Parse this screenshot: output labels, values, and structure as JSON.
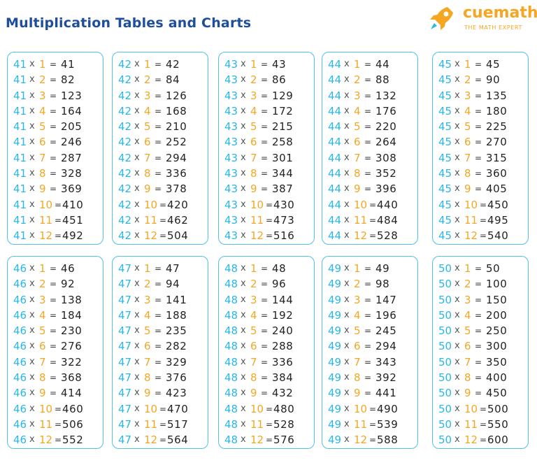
{
  "header": {
    "title": "Multiplication Tables and Charts",
    "logo_name": "cuemath",
    "logo_tagline": "THE MATH EXPERT"
  },
  "colors": {
    "title": "#1f4e9c",
    "base_number": "#29b6e8",
    "multiplier": "#f5a623",
    "border": "#4fc3e8",
    "logo": "#f5a623"
  },
  "symbols": {
    "times": "x",
    "equals": "="
  },
  "tables": [
    {
      "base": "41",
      "rows": [
        [
          "1",
          "41"
        ],
        [
          "2",
          "82"
        ],
        [
          "3",
          "123"
        ],
        [
          "4",
          "164"
        ],
        [
          "5",
          "205"
        ],
        [
          "6",
          "246"
        ],
        [
          "7",
          "287"
        ],
        [
          "8",
          "328"
        ],
        [
          "9",
          "369"
        ],
        [
          "10",
          "410"
        ],
        [
          "11",
          "451"
        ],
        [
          "12",
          "492"
        ]
      ]
    },
    {
      "base": "42",
      "rows": [
        [
          "1",
          "42"
        ],
        [
          "2",
          "84"
        ],
        [
          "3",
          "126"
        ],
        [
          "4",
          "168"
        ],
        [
          "5",
          "210"
        ],
        [
          "6",
          "252"
        ],
        [
          "7",
          "294"
        ],
        [
          "8",
          "336"
        ],
        [
          "9",
          "378"
        ],
        [
          "10",
          "420"
        ],
        [
          "11",
          "462"
        ],
        [
          "12",
          "504"
        ]
      ]
    },
    {
      "base": "43",
      "rows": [
        [
          "1",
          "43"
        ],
        [
          "2",
          "86"
        ],
        [
          "3",
          "129"
        ],
        [
          "4",
          "172"
        ],
        [
          "5",
          "215"
        ],
        [
          "6",
          "258"
        ],
        [
          "7",
          "301"
        ],
        [
          "8",
          "344"
        ],
        [
          "9",
          "387"
        ],
        [
          "10",
          "430"
        ],
        [
          "11",
          "473"
        ],
        [
          "12",
          "516"
        ]
      ]
    },
    {
      "base": "44",
      "rows": [
        [
          "1",
          "44"
        ],
        [
          "2",
          "88"
        ],
        [
          "3",
          "132"
        ],
        [
          "4",
          "176"
        ],
        [
          "5",
          "220"
        ],
        [
          "6",
          "264"
        ],
        [
          "7",
          "308"
        ],
        [
          "8",
          "352"
        ],
        [
          "9",
          "396"
        ],
        [
          "10",
          "440"
        ],
        [
          "11",
          "484"
        ],
        [
          "12",
          "528"
        ]
      ]
    },
    {
      "base": "45",
      "rows": [
        [
          "1",
          "45"
        ],
        [
          "2",
          "90"
        ],
        [
          "3",
          "135"
        ],
        [
          "4",
          "180"
        ],
        [
          "5",
          "225"
        ],
        [
          "6",
          "270"
        ],
        [
          "7",
          "315"
        ],
        [
          "8",
          "360"
        ],
        [
          "9",
          "405"
        ],
        [
          "10",
          "450"
        ],
        [
          "11",
          "495"
        ],
        [
          "12",
          "540"
        ]
      ]
    },
    {
      "base": "46",
      "rows": [
        [
          "1",
          "46"
        ],
        [
          "2",
          "92"
        ],
        [
          "3",
          "138"
        ],
        [
          "4",
          "184"
        ],
        [
          "5",
          "230"
        ],
        [
          "6",
          "276"
        ],
        [
          "7",
          "322"
        ],
        [
          "8",
          "368"
        ],
        [
          "9",
          "414"
        ],
        [
          "10",
          "460"
        ],
        [
          "11",
          "506"
        ],
        [
          "12",
          "552"
        ]
      ]
    },
    {
      "base": "47",
      "rows": [
        [
          "1",
          "47"
        ],
        [
          "2",
          "94"
        ],
        [
          "3",
          "141"
        ],
        [
          "4",
          "188"
        ],
        [
          "5",
          "235"
        ],
        [
          "6",
          "282"
        ],
        [
          "7",
          "329"
        ],
        [
          "8",
          "376"
        ],
        [
          "9",
          "423"
        ],
        [
          "10",
          "470"
        ],
        [
          "11",
          "517"
        ],
        [
          "12",
          "564"
        ]
      ]
    },
    {
      "base": "48",
      "rows": [
        [
          "1",
          "48"
        ],
        [
          "2",
          "96"
        ],
        [
          "3",
          "144"
        ],
        [
          "4",
          "192"
        ],
        [
          "5",
          "240"
        ],
        [
          "6",
          "288"
        ],
        [
          "7",
          "336"
        ],
        [
          "8",
          "384"
        ],
        [
          "9",
          "432"
        ],
        [
          "10",
          "480"
        ],
        [
          "11",
          "528"
        ],
        [
          "12",
          "576"
        ]
      ]
    },
    {
      "base": "49",
      "rows": [
        [
          "1",
          "49"
        ],
        [
          "2",
          "98"
        ],
        [
          "3",
          "147"
        ],
        [
          "4",
          "196"
        ],
        [
          "5",
          "245"
        ],
        [
          "6",
          "294"
        ],
        [
          "7",
          "343"
        ],
        [
          "8",
          "392"
        ],
        [
          "9",
          "441"
        ],
        [
          "10",
          "490"
        ],
        [
          "11",
          "539"
        ],
        [
          "12",
          "588"
        ]
      ]
    },
    {
      "base": "50",
      "rows": [
        [
          "1",
          "50"
        ],
        [
          "2",
          "100"
        ],
        [
          "3",
          "150"
        ],
        [
          "4",
          "200"
        ],
        [
          "5",
          "250"
        ],
        [
          "6",
          "300"
        ],
        [
          "7",
          "350"
        ],
        [
          "8",
          "400"
        ],
        [
          "9",
          "450"
        ],
        [
          "10",
          "500"
        ],
        [
          "11",
          "550"
        ],
        [
          "12",
          "600"
        ]
      ]
    }
  ]
}
